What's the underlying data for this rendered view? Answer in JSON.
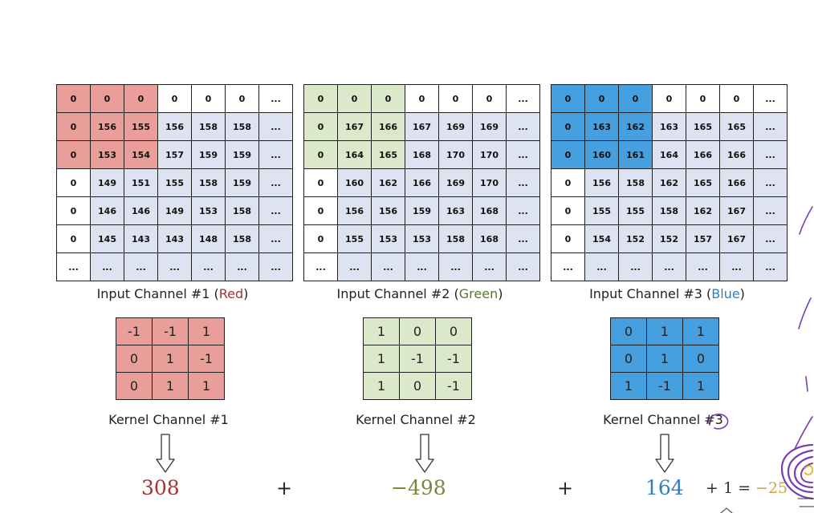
{
  "colors": {
    "red_highlight": "#ea9e9a",
    "red_rest": "#dde3f0",
    "green_highlight": "#dbe8c9",
    "green_rest": "#dde3f0",
    "blue_highlight": "#46a0df",
    "blue_rest": "#dde3f0",
    "red_text": "#a8322c",
    "green_text": "#557a2d",
    "blue_text": "#2e7fc2",
    "ink": "#7a3db0"
  },
  "channels": [
    {
      "id": "red",
      "rows": [
        [
          "0",
          "0",
          "0",
          "0",
          "0",
          "0",
          "..."
        ],
        [
          "0",
          "156",
          "155",
          "156",
          "158",
          "158",
          "..."
        ],
        [
          "0",
          "153",
          "154",
          "157",
          "159",
          "159",
          "..."
        ],
        [
          "0",
          "149",
          "151",
          "155",
          "158",
          "159",
          "..."
        ],
        [
          "0",
          "146",
          "146",
          "149",
          "153",
          "158",
          "..."
        ],
        [
          "0",
          "145",
          "143",
          "143",
          "148",
          "158",
          "..."
        ],
        [
          "...",
          "...",
          "...",
          "...",
          "...",
          "...",
          "..."
        ]
      ],
      "caption_prefix": "Input Channel #1 (",
      "caption_color_word": "Red",
      "caption_suffix": ")"
    },
    {
      "id": "green",
      "rows": [
        [
          "0",
          "0",
          "0",
          "0",
          "0",
          "0",
          "..."
        ],
        [
          "0",
          "167",
          "166",
          "167",
          "169",
          "169",
          "..."
        ],
        [
          "0",
          "164",
          "165",
          "168",
          "170",
          "170",
          "..."
        ],
        [
          "0",
          "160",
          "162",
          "166",
          "169",
          "170",
          "..."
        ],
        [
          "0",
          "156",
          "156",
          "159",
          "163",
          "168",
          "..."
        ],
        [
          "0",
          "155",
          "153",
          "153",
          "158",
          "168",
          "..."
        ],
        [
          "...",
          "...",
          "...",
          "...",
          "...",
          "...",
          "..."
        ]
      ],
      "caption_prefix": "Input Channel #2 (",
      "caption_color_word": "Green",
      "caption_suffix": ")"
    },
    {
      "id": "blue",
      "rows": [
        [
          "0",
          "0",
          "0",
          "0",
          "0",
          "0",
          "..."
        ],
        [
          "0",
          "163",
          "162",
          "163",
          "165",
          "165",
          "..."
        ],
        [
          "0",
          "160",
          "161",
          "164",
          "166",
          "166",
          "..."
        ],
        [
          "0",
          "156",
          "158",
          "162",
          "165",
          "166",
          "..."
        ],
        [
          "0",
          "155",
          "155",
          "158",
          "162",
          "167",
          "..."
        ],
        [
          "0",
          "154",
          "152",
          "152",
          "157",
          "167",
          "..."
        ],
        [
          "...",
          "...",
          "...",
          "...",
          "...",
          "...",
          "..."
        ]
      ],
      "caption_prefix": "Input Channel #3 (",
      "caption_color_word": "Blue",
      "caption_suffix": ")"
    }
  ],
  "kernels": [
    {
      "rows": [
        [
          "-1",
          "-1",
          "1"
        ],
        [
          "0",
          "1",
          "-1"
        ],
        [
          "0",
          "1",
          "1"
        ]
      ],
      "caption": "Kernel Channel #1"
    },
    {
      "rows": [
        [
          "1",
          "0",
          "0"
        ],
        [
          "1",
          "-1",
          "-1"
        ],
        [
          "1",
          "0",
          "-1"
        ]
      ],
      "caption": "Kernel Channel #2"
    },
    {
      "rows": [
        [
          "0",
          "1",
          "1"
        ],
        [
          "0",
          "1",
          "0"
        ],
        [
          "1",
          "-1",
          "1"
        ]
      ],
      "caption": "Kernel Channel #3"
    }
  ],
  "results": [
    "308",
    "−498",
    "164"
  ],
  "operators": [
    "+",
    "+"
  ],
  "bias_expression": "+ 1 = ",
  "bias_result": "−25"
}
